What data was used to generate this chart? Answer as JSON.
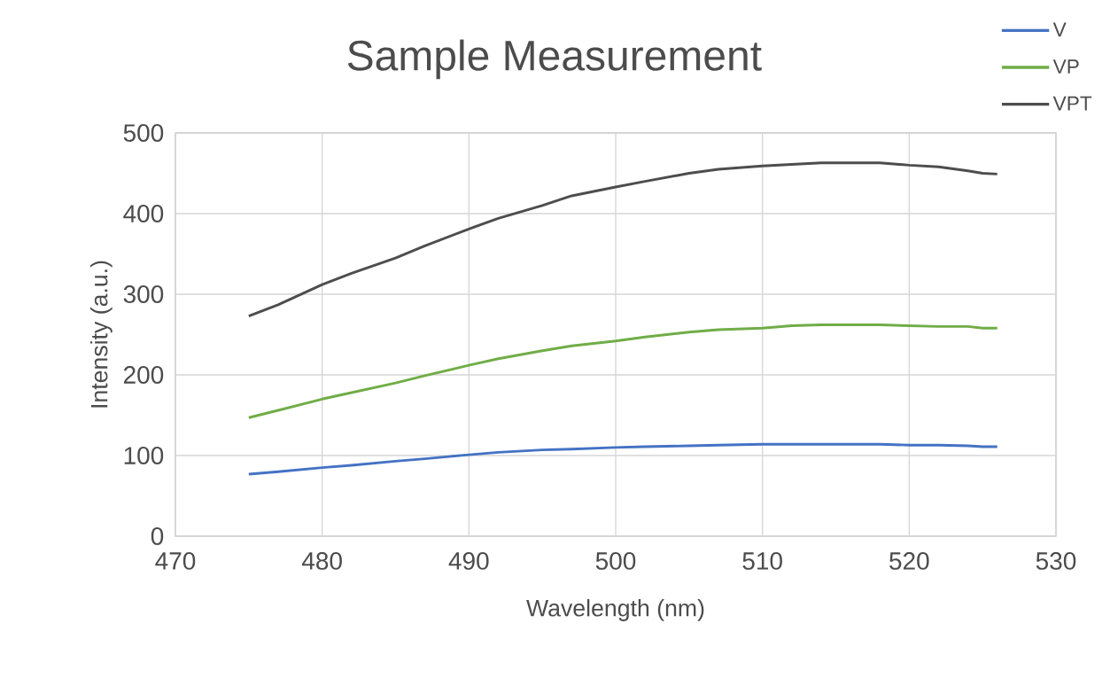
{
  "chart_data": {
    "type": "line",
    "title": "Sample Measurement",
    "xlabel": "Wavelength (nm)",
    "ylabel": "Intensity (a.u.)",
    "x": [
      475,
      477,
      480,
      482,
      485,
      487,
      490,
      492,
      495,
      497,
      500,
      502,
      505,
      507,
      510,
      512,
      514,
      516,
      518,
      520,
      522,
      524,
      525,
      526
    ],
    "series": [
      {
        "name": "V",
        "color": "#4472c4",
        "values": [
          77,
          80,
          85,
          88,
          93,
          96,
          101,
          104,
          107,
          108,
          110,
          111,
          112,
          113,
          114,
          114,
          114,
          114,
          114,
          113,
          113,
          112,
          111,
          111
        ]
      },
      {
        "name": "VP",
        "color": "#70ad47",
        "values": [
          147,
          156,
          170,
          178,
          190,
          199,
          212,
          220,
          230,
          236,
          242,
          247,
          253,
          256,
          258,
          261,
          262,
          262,
          262,
          261,
          260,
          260,
          258,
          258
        ]
      },
      {
        "name": "VPT",
        "color": "#4d4d4d",
        "values": [
          273,
          287,
          312,
          326,
          345,
          360,
          381,
          394,
          410,
          422,
          433,
          440,
          450,
          455,
          459,
          461,
          463,
          463,
          463,
          460,
          458,
          453,
          450,
          449
        ]
      }
    ],
    "xlim": [
      470,
      530
    ],
    "xticks": [
      470,
      480,
      490,
      500,
      510,
      520,
      530
    ],
    "ylim": [
      0,
      500
    ],
    "yticks": [
      0,
      100,
      200,
      300,
      400,
      500
    ],
    "grid": true,
    "legend": "top right",
    "marker": "none",
    "line_style": "solid"
  }
}
